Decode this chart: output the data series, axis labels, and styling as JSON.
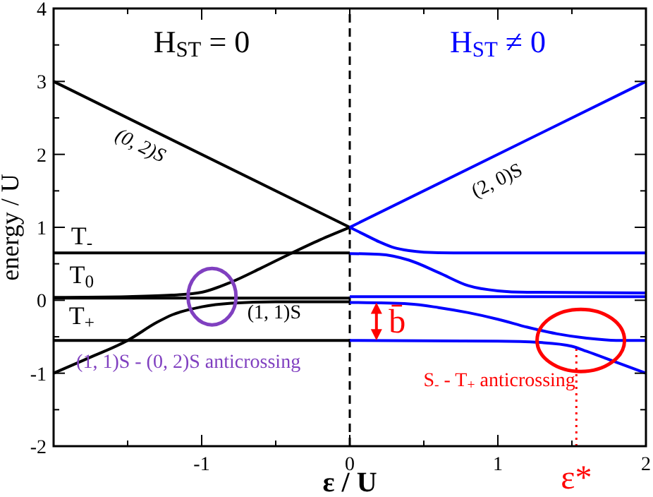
{
  "chart_data": {
    "type": "line",
    "xlabel": "ε / U",
    "ylabel": "energy / U",
    "xlim": [
      -2,
      2
    ],
    "ylim": [
      -2,
      4
    ],
    "xticks": [
      {
        "value": -2,
        "label": null
      },
      {
        "value": -1.5,
        "label": null
      },
      -1,
      {
        "value": -0.5,
        "label": null
      },
      0,
      {
        "value": 0.5,
        "label": null
      },
      1,
      {
        "value": 1.5,
        "label": null
      },
      2
    ],
    "yticks": [
      -2,
      {
        "value": -1.5,
        "label": null
      },
      -1,
      {
        "value": -0.5,
        "label": null
      },
      0,
      {
        "value": 0.5,
        "label": null
      },
      1,
      {
        "value": 1.5,
        "label": null
      },
      2,
      {
        "value": 2.5,
        "label": null
      },
      3,
      {
        "value": 3.5,
        "label": null
      },
      4
    ],
    "grid": false,
    "line_style": "solid",
    "series": [
      {
        "color": "#000000",
        "x": [
          -2,
          0
        ],
        "values": [
          3,
          1
        ]
      },
      {
        "color": "#000000",
        "x": [
          -2,
          0
        ],
        "values": [
          0.65,
          0.65
        ]
      },
      {
        "color": "#000000",
        "x": [
          -2,
          0
        ],
        "values": [
          0.03,
          0.03
        ]
      },
      {
        "color": "#000000",
        "x": [
          -2,
          0
        ],
        "values": [
          -0.55,
          -0.55
        ]
      },
      {
        "color": "#000000",
        "x": [
          -2,
          -1.5,
          -1.2,
          -1,
          -0.8,
          -0.6,
          -0.4,
          -0.2,
          0
        ],
        "values": [
          0.04,
          0.05,
          0.07,
          0.11,
          0.25,
          0.44,
          0.64,
          0.83,
          1.0
        ]
      },
      {
        "color": "#000000",
        "x": [
          -2,
          -1.75,
          -1.5,
          -1.3,
          -1.2,
          -1,
          -0.8,
          -0.5,
          0
        ],
        "values": [
          -1,
          -0.78,
          -0.55,
          -0.3,
          -0.2,
          -0.09,
          -0.04,
          -0.02,
          -0.02
        ]
      },
      {
        "color": "#0000ff",
        "x": [
          0,
          2
        ],
        "values": [
          1,
          3
        ]
      },
      {
        "color": "#0000ff",
        "x": [
          0,
          0.1,
          0.2,
          0.3,
          0.4,
          0.5,
          0.7,
          2
        ],
        "values": [
          1.0,
          0.9,
          0.8,
          0.72,
          0.68,
          0.66,
          0.65,
          0.65
        ]
      },
      {
        "color": "#0000ff",
        "x": [
          0,
          0.2,
          0.4,
          0.6,
          0.8,
          1.0,
          1.2,
          2
        ],
        "values": [
          0.64,
          0.63,
          0.55,
          0.38,
          0.2,
          0.13,
          0.11,
          0.1
        ]
      },
      {
        "color": "#0000ff",
        "x": [
          0,
          2
        ],
        "values": [
          0.05,
          0.05
        ]
      },
      {
        "color": "#0000ff",
        "x": [
          0,
          0.4,
          0.6,
          0.8,
          1.0,
          1.2,
          1.4,
          1.6,
          1.8,
          2
        ],
        "values": [
          -0.03,
          -0.05,
          -0.1,
          -0.17,
          -0.26,
          -0.37,
          -0.46,
          -0.52,
          -0.55,
          -0.55
        ]
      },
      {
        "color": "#0000ff",
        "x": [
          0,
          1.0,
          1.3,
          1.5,
          1.6,
          1.8,
          2
        ],
        "values": [
          -0.55,
          -0.56,
          -0.58,
          -0.63,
          -0.7,
          -0.85,
          -1.0
        ]
      }
    ],
    "ref_lines": [
      {
        "axis": "x",
        "value": 0,
        "color": "#000000",
        "line_style": "dashed"
      },
      {
        "axis": "x",
        "value": 1.53,
        "label": "ε*",
        "color": "#ff0000",
        "line_style": "dotted"
      }
    ],
    "annotations": [
      "H$_{ST}$ = 0",
      "H$_{ST}$ ≠ 0",
      "(0, 2)S",
      "(2, 0)S",
      "T$_{-}$",
      "T$_{0}$",
      "T$_{+}$",
      "(1, 1)S",
      "(1, 1)S - (0, 2)S anticrossing",
      "S$_{-}$ - T$_{+}$ anticrossing",
      "b̄"
    ]
  }
}
